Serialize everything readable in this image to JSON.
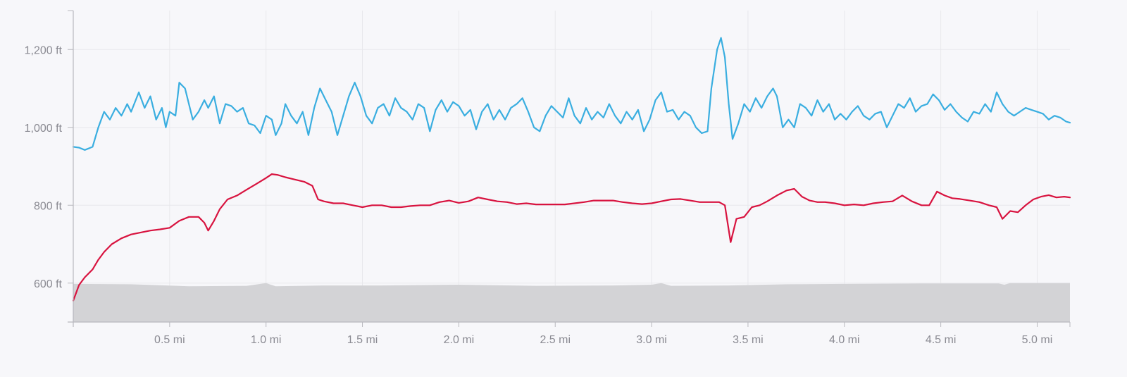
{
  "chart_data": {
    "type": "line",
    "title": "",
    "xlabel": "",
    "ylabel": "",
    "x_unit": "mi",
    "y_unit": "ft",
    "xlim": [
      0,
      5.17
    ],
    "ylim": [
      500,
      1300
    ],
    "grid": true,
    "x_ticks": [
      "0.5 mi",
      "1.0 mi",
      "1.5 mi",
      "2.0 mi",
      "2.5 mi",
      "3.0 mi",
      "3.5 mi",
      "4.0 mi",
      "4.5 mi",
      "5.0 mi"
    ],
    "x_tick_values": [
      0.5,
      1.0,
      1.5,
      2.0,
      2.5,
      3.0,
      3.5,
      4.0,
      4.5,
      5.0
    ],
    "y_ticks": [
      "600 ft",
      "800 ft",
      "1,000 ft",
      "1,200 ft"
    ],
    "y_tick_values": [
      600,
      800,
      1000,
      1200
    ],
    "series": [
      {
        "color": "#3aaee0",
        "kind": "line",
        "points": [
          [
            0.0,
            950
          ],
          [
            0.03,
            948
          ],
          [
            0.06,
            942
          ],
          [
            0.1,
            950
          ],
          [
            0.13,
            1000
          ],
          [
            0.16,
            1040
          ],
          [
            0.19,
            1020
          ],
          [
            0.22,
            1050
          ],
          [
            0.25,
            1030
          ],
          [
            0.28,
            1060
          ],
          [
            0.3,
            1040
          ],
          [
            0.34,
            1090
          ],
          [
            0.37,
            1050
          ],
          [
            0.4,
            1080
          ],
          [
            0.43,
            1020
          ],
          [
            0.46,
            1050
          ],
          [
            0.48,
            1000
          ],
          [
            0.5,
            1040
          ],
          [
            0.53,
            1030
          ],
          [
            0.55,
            1115
          ],
          [
            0.58,
            1100
          ],
          [
            0.6,
            1060
          ],
          [
            0.62,
            1020
          ],
          [
            0.65,
            1040
          ],
          [
            0.68,
            1070
          ],
          [
            0.7,
            1050
          ],
          [
            0.73,
            1080
          ],
          [
            0.76,
            1010
          ],
          [
            0.79,
            1060
          ],
          [
            0.82,
            1055
          ],
          [
            0.85,
            1040
          ],
          [
            0.88,
            1050
          ],
          [
            0.91,
            1010
          ],
          [
            0.94,
            1005
          ],
          [
            0.97,
            985
          ],
          [
            1.0,
            1030
          ],
          [
            1.03,
            1020
          ],
          [
            1.05,
            980
          ],
          [
            1.08,
            1010
          ],
          [
            1.1,
            1060
          ],
          [
            1.13,
            1030
          ],
          [
            1.16,
            1010
          ],
          [
            1.19,
            1040
          ],
          [
            1.22,
            980
          ],
          [
            1.25,
            1050
          ],
          [
            1.28,
            1100
          ],
          [
            1.31,
            1070
          ],
          [
            1.34,
            1040
          ],
          [
            1.37,
            980
          ],
          [
            1.4,
            1030
          ],
          [
            1.43,
            1080
          ],
          [
            1.46,
            1115
          ],
          [
            1.49,
            1080
          ],
          [
            1.52,
            1030
          ],
          [
            1.55,
            1010
          ],
          [
            1.58,
            1050
          ],
          [
            1.61,
            1060
          ],
          [
            1.64,
            1030
          ],
          [
            1.67,
            1075
          ],
          [
            1.7,
            1050
          ],
          [
            1.73,
            1040
          ],
          [
            1.76,
            1020
          ],
          [
            1.79,
            1060
          ],
          [
            1.82,
            1050
          ],
          [
            1.85,
            990
          ],
          [
            1.88,
            1045
          ],
          [
            1.91,
            1070
          ],
          [
            1.94,
            1040
          ],
          [
            1.97,
            1065
          ],
          [
            2.0,
            1055
          ],
          [
            2.03,
            1030
          ],
          [
            2.06,
            1045
          ],
          [
            2.09,
            995
          ],
          [
            2.12,
            1040
          ],
          [
            2.15,
            1060
          ],
          [
            2.18,
            1020
          ],
          [
            2.21,
            1045
          ],
          [
            2.24,
            1020
          ],
          [
            2.27,
            1050
          ],
          [
            2.3,
            1060
          ],
          [
            2.33,
            1075
          ],
          [
            2.36,
            1040
          ],
          [
            2.39,
            1000
          ],
          [
            2.42,
            990
          ],
          [
            2.45,
            1030
          ],
          [
            2.48,
            1055
          ],
          [
            2.51,
            1040
          ],
          [
            2.54,
            1025
          ],
          [
            2.57,
            1075
          ],
          [
            2.6,
            1030
          ],
          [
            2.63,
            1010
          ],
          [
            2.66,
            1050
          ],
          [
            2.69,
            1020
          ],
          [
            2.72,
            1040
          ],
          [
            2.75,
            1025
          ],
          [
            2.78,
            1060
          ],
          [
            2.81,
            1030
          ],
          [
            2.84,
            1010
          ],
          [
            2.87,
            1040
          ],
          [
            2.9,
            1020
          ],
          [
            2.93,
            1045
          ],
          [
            2.96,
            990
          ],
          [
            2.99,
            1020
          ],
          [
            3.02,
            1070
          ],
          [
            3.05,
            1090
          ],
          [
            3.08,
            1040
          ],
          [
            3.11,
            1045
          ],
          [
            3.14,
            1020
          ],
          [
            3.17,
            1040
          ],
          [
            3.2,
            1030
          ],
          [
            3.23,
            1000
          ],
          [
            3.26,
            985
          ],
          [
            3.29,
            990
          ],
          [
            3.31,
            1100
          ],
          [
            3.34,
            1200
          ],
          [
            3.36,
            1230
          ],
          [
            3.38,
            1180
          ],
          [
            3.4,
            1060
          ],
          [
            3.42,
            970
          ],
          [
            3.45,
            1010
          ],
          [
            3.48,
            1060
          ],
          [
            3.51,
            1040
          ],
          [
            3.54,
            1075
          ],
          [
            3.57,
            1050
          ],
          [
            3.6,
            1080
          ],
          [
            3.63,
            1100
          ],
          [
            3.65,
            1080
          ],
          [
            3.68,
            1000
          ],
          [
            3.71,
            1020
          ],
          [
            3.74,
            1000
          ],
          [
            3.77,
            1060
          ],
          [
            3.8,
            1050
          ],
          [
            3.83,
            1030
          ],
          [
            3.86,
            1070
          ],
          [
            3.89,
            1040
          ],
          [
            3.92,
            1060
          ],
          [
            3.95,
            1020
          ],
          [
            3.98,
            1035
          ],
          [
            4.01,
            1020
          ],
          [
            4.04,
            1040
          ],
          [
            4.07,
            1055
          ],
          [
            4.1,
            1030
          ],
          [
            4.13,
            1020
          ],
          [
            4.16,
            1035
          ],
          [
            4.19,
            1040
          ],
          [
            4.22,
            1000
          ],
          [
            4.25,
            1030
          ],
          [
            4.28,
            1060
          ],
          [
            4.31,
            1050
          ],
          [
            4.34,
            1075
          ],
          [
            4.37,
            1040
          ],
          [
            4.4,
            1055
          ],
          [
            4.43,
            1060
          ],
          [
            4.46,
            1085
          ],
          [
            4.49,
            1070
          ],
          [
            4.52,
            1045
          ],
          [
            4.55,
            1060
          ],
          [
            4.58,
            1040
          ],
          [
            4.61,
            1025
          ],
          [
            4.64,
            1015
          ],
          [
            4.67,
            1040
          ],
          [
            4.7,
            1035
          ],
          [
            4.73,
            1060
          ],
          [
            4.76,
            1040
          ],
          [
            4.79,
            1090
          ],
          [
            4.82,
            1060
          ],
          [
            4.85,
            1040
          ],
          [
            4.88,
            1030
          ],
          [
            4.91,
            1040
          ],
          [
            4.94,
            1050
          ],
          [
            4.97,
            1045
          ],
          [
            5.0,
            1040
          ],
          [
            5.03,
            1035
          ],
          [
            5.06,
            1020
          ],
          [
            5.09,
            1030
          ],
          [
            5.12,
            1025
          ],
          [
            5.15,
            1015
          ],
          [
            5.17,
            1012
          ]
        ]
      },
      {
        "color": "#d8133f",
        "kind": "line",
        "points": [
          [
            0.0,
            555
          ],
          [
            0.03,
            595
          ],
          [
            0.06,
            615
          ],
          [
            0.1,
            635
          ],
          [
            0.13,
            660
          ],
          [
            0.16,
            680
          ],
          [
            0.2,
            700
          ],
          [
            0.25,
            715
          ],
          [
            0.3,
            725
          ],
          [
            0.35,
            730
          ],
          [
            0.4,
            735
          ],
          [
            0.45,
            738
          ],
          [
            0.5,
            742
          ],
          [
            0.55,
            760
          ],
          [
            0.6,
            770
          ],
          [
            0.65,
            770
          ],
          [
            0.68,
            755
          ],
          [
            0.7,
            735
          ],
          [
            0.73,
            760
          ],
          [
            0.76,
            790
          ],
          [
            0.8,
            815
          ],
          [
            0.85,
            825
          ],
          [
            0.9,
            840
          ],
          [
            0.95,
            855
          ],
          [
            1.0,
            870
          ],
          [
            1.03,
            880
          ],
          [
            1.06,
            878
          ],
          [
            1.1,
            872
          ],
          [
            1.15,
            866
          ],
          [
            1.2,
            860
          ],
          [
            1.24,
            850
          ],
          [
            1.27,
            815
          ],
          [
            1.3,
            810
          ],
          [
            1.35,
            805
          ],
          [
            1.4,
            805
          ],
          [
            1.45,
            800
          ],
          [
            1.5,
            795
          ],
          [
            1.55,
            800
          ],
          [
            1.6,
            800
          ],
          [
            1.65,
            795
          ],
          [
            1.7,
            795
          ],
          [
            1.75,
            798
          ],
          [
            1.8,
            800
          ],
          [
            1.85,
            800
          ],
          [
            1.9,
            808
          ],
          [
            1.95,
            812
          ],
          [
            2.0,
            806
          ],
          [
            2.05,
            810
          ],
          [
            2.1,
            820
          ],
          [
            2.15,
            815
          ],
          [
            2.2,
            810
          ],
          [
            2.25,
            808
          ],
          [
            2.3,
            803
          ],
          [
            2.35,
            805
          ],
          [
            2.4,
            802
          ],
          [
            2.45,
            802
          ],
          [
            2.5,
            802
          ],
          [
            2.55,
            802
          ],
          [
            2.6,
            805
          ],
          [
            2.65,
            808
          ],
          [
            2.7,
            812
          ],
          [
            2.75,
            812
          ],
          [
            2.8,
            812
          ],
          [
            2.85,
            808
          ],
          [
            2.9,
            805
          ],
          [
            2.95,
            803
          ],
          [
            3.0,
            805
          ],
          [
            3.05,
            810
          ],
          [
            3.1,
            815
          ],
          [
            3.15,
            816
          ],
          [
            3.2,
            812
          ],
          [
            3.25,
            808
          ],
          [
            3.3,
            808
          ],
          [
            3.35,
            808
          ],
          [
            3.38,
            800
          ],
          [
            3.41,
            705
          ],
          [
            3.44,
            765
          ],
          [
            3.48,
            770
          ],
          [
            3.52,
            795
          ],
          [
            3.56,
            800
          ],
          [
            3.6,
            810
          ],
          [
            3.65,
            825
          ],
          [
            3.7,
            838
          ],
          [
            3.74,
            842
          ],
          [
            3.78,
            822
          ],
          [
            3.82,
            812
          ],
          [
            3.86,
            808
          ],
          [
            3.9,
            808
          ],
          [
            3.95,
            805
          ],
          [
            4.0,
            800
          ],
          [
            4.05,
            802
          ],
          [
            4.1,
            800
          ],
          [
            4.15,
            805
          ],
          [
            4.2,
            808
          ],
          [
            4.25,
            810
          ],
          [
            4.3,
            825
          ],
          [
            4.35,
            810
          ],
          [
            4.4,
            800
          ],
          [
            4.44,
            800
          ],
          [
            4.48,
            835
          ],
          [
            4.52,
            825
          ],
          [
            4.56,
            818
          ],
          [
            4.6,
            816
          ],
          [
            4.65,
            812
          ],
          [
            4.7,
            808
          ],
          [
            4.75,
            800
          ],
          [
            4.79,
            795
          ],
          [
            4.82,
            765
          ],
          [
            4.86,
            785
          ],
          [
            4.9,
            782
          ],
          [
            4.94,
            800
          ],
          [
            4.98,
            815
          ],
          [
            5.02,
            822
          ],
          [
            5.06,
            826
          ],
          [
            5.1,
            820
          ],
          [
            5.14,
            822
          ],
          [
            5.17,
            820
          ]
        ]
      },
      {
        "color": "#d3d3d6",
        "kind": "area",
        "points": [
          [
            0.0,
            598
          ],
          [
            0.3,
            597
          ],
          [
            0.6,
            592
          ],
          [
            0.9,
            593
          ],
          [
            1.0,
            600
          ],
          [
            1.05,
            592
          ],
          [
            1.3,
            594
          ],
          [
            1.6,
            594
          ],
          [
            2.0,
            596
          ],
          [
            2.4,
            593
          ],
          [
            2.8,
            594
          ],
          [
            3.0,
            596
          ],
          [
            3.05,
            600
          ],
          [
            3.1,
            593
          ],
          [
            3.4,
            594
          ],
          [
            3.7,
            597
          ],
          [
            4.0,
            598
          ],
          [
            4.4,
            599
          ],
          [
            4.8,
            599
          ],
          [
            4.83,
            596
          ],
          [
            4.86,
            600
          ],
          [
            5.17,
            600
          ]
        ]
      }
    ]
  }
}
